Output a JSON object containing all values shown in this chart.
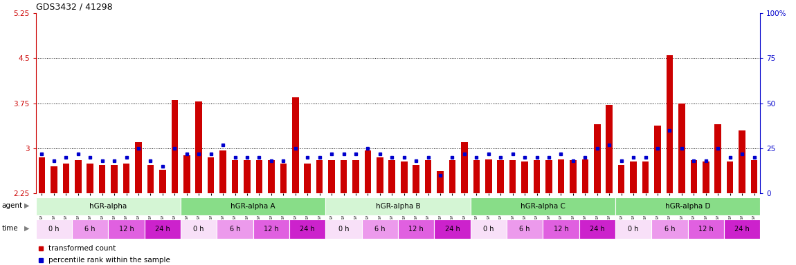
{
  "title": "GDS3432 / 41298",
  "samples": [
    "GSM154259",
    "GSM154260",
    "GSM154261",
    "GSM154274",
    "GSM154275",
    "GSM154276",
    "GSM154289",
    "GSM154290",
    "GSM154291",
    "GSM154304",
    "GSM154305",
    "GSM154306",
    "GSM154262",
    "GSM154263",
    "GSM154264",
    "GSM154277",
    "GSM154278",
    "GSM154279",
    "GSM154292",
    "GSM154293",
    "GSM154294",
    "GSM154307",
    "GSM154308",
    "GSM154309",
    "GSM154265",
    "GSM154266",
    "GSM154267",
    "GSM154280",
    "GSM154281",
    "GSM154282",
    "GSM154295",
    "GSM154296",
    "GSM154297",
    "GSM154310",
    "GSM154311",
    "GSM154312",
    "GSM154268",
    "GSM154269",
    "GSM154270",
    "GSM154283",
    "GSM154284",
    "GSM154285",
    "GSM154298",
    "GSM154299",
    "GSM154300",
    "GSM154313",
    "GSM154314",
    "GSM154315",
    "GSM154271",
    "GSM154272",
    "GSM154273",
    "GSM154286",
    "GSM154287",
    "GSM154288",
    "GSM154301",
    "GSM154302",
    "GSM154303",
    "GSM154316",
    "GSM154317",
    "GSM154318"
  ],
  "red_values": [
    2.85,
    2.7,
    2.75,
    2.8,
    2.75,
    2.72,
    2.72,
    2.75,
    3.1,
    2.72,
    2.65,
    3.8,
    2.88,
    3.78,
    2.85,
    2.97,
    2.8,
    2.8,
    2.8,
    2.8,
    2.75,
    3.85,
    2.75,
    2.8,
    2.8,
    2.8,
    2.8,
    2.97,
    2.85,
    2.8,
    2.78,
    2.72,
    2.8,
    2.62,
    2.8,
    3.1,
    2.8,
    2.82,
    2.8,
    2.8,
    2.78,
    2.8,
    2.8,
    2.82,
    2.8,
    2.82,
    3.4,
    3.72,
    2.72,
    2.78,
    2.78,
    3.38,
    4.55,
    3.75,
    2.8,
    2.78,
    3.4,
    2.78,
    3.3,
    2.8
  ],
  "blue_values": [
    22,
    18,
    20,
    22,
    20,
    18,
    18,
    20,
    25,
    18,
    15,
    25,
    22,
    22,
    22,
    27,
    20,
    20,
    20,
    18,
    18,
    25,
    20,
    20,
    22,
    22,
    22,
    25,
    22,
    20,
    20,
    18,
    20,
    10,
    20,
    22,
    20,
    22,
    20,
    22,
    20,
    20,
    20,
    22,
    18,
    20,
    25,
    27,
    18,
    20,
    20,
    25,
    35,
    25,
    18,
    18,
    25,
    20,
    22,
    20
  ],
  "groups": [
    {
      "label": "hGR-alpha",
      "start": 0,
      "end": 12,
      "color": "#d4f5d4"
    },
    {
      "label": "hGR-alpha A",
      "start": 12,
      "end": 24,
      "color": "#88dd88"
    },
    {
      "label": "hGR-alpha B",
      "start": 24,
      "end": 36,
      "color": "#d4f5d4"
    },
    {
      "label": "hGR-alpha C",
      "start": 36,
      "end": 48,
      "color": "#88dd88"
    },
    {
      "label": "hGR-alpha D",
      "start": 48,
      "end": 60,
      "color": "#88dd88"
    }
  ],
  "time_labels": [
    "0 h",
    "6 h",
    "12 h",
    "24 h",
    "0 h",
    "6 h",
    "12 h",
    "24 h",
    "0 h",
    "6 h",
    "12 h",
    "24 h",
    "0 h",
    "6 h",
    "12 h",
    "24 h",
    "0 h",
    "6 h",
    "12 h",
    "24 h"
  ],
  "time_colors": [
    "#f8e0f8",
    "#ec9aec",
    "#e060e0",
    "#cc22cc",
    "#f8e0f8",
    "#ec9aec",
    "#e060e0",
    "#cc22cc",
    "#f8e0f8",
    "#ec9aec",
    "#e060e0",
    "#cc22cc",
    "#f8e0f8",
    "#ec9aec",
    "#e060e0",
    "#cc22cc",
    "#f8e0f8",
    "#ec9aec",
    "#e060e0",
    "#cc22cc"
  ],
  "ylim_left": [
    2.25,
    5.25
  ],
  "ylim_right": [
    0,
    100
  ],
  "yticks_left": [
    2.25,
    3.0,
    3.75,
    4.5,
    5.25
  ],
  "yticks_right": [
    0,
    25,
    50,
    75,
    100
  ],
  "ytick_labels_left": [
    "2.25",
    "3",
    "3.75",
    "4.5",
    "5.25"
  ],
  "ytick_labels_right": [
    "0",
    "25",
    "50",
    "75",
    "100%"
  ],
  "hline_values": [
    3.0,
    3.75,
    4.5
  ],
  "bar_color": "#cc0000",
  "dot_color": "#0000cc",
  "title_color": "#000000",
  "left_axis_color": "#cc0000",
  "right_axis_color": "#0000cc",
  "background_color": "#ffffff",
  "bar_bottom": 2.25
}
